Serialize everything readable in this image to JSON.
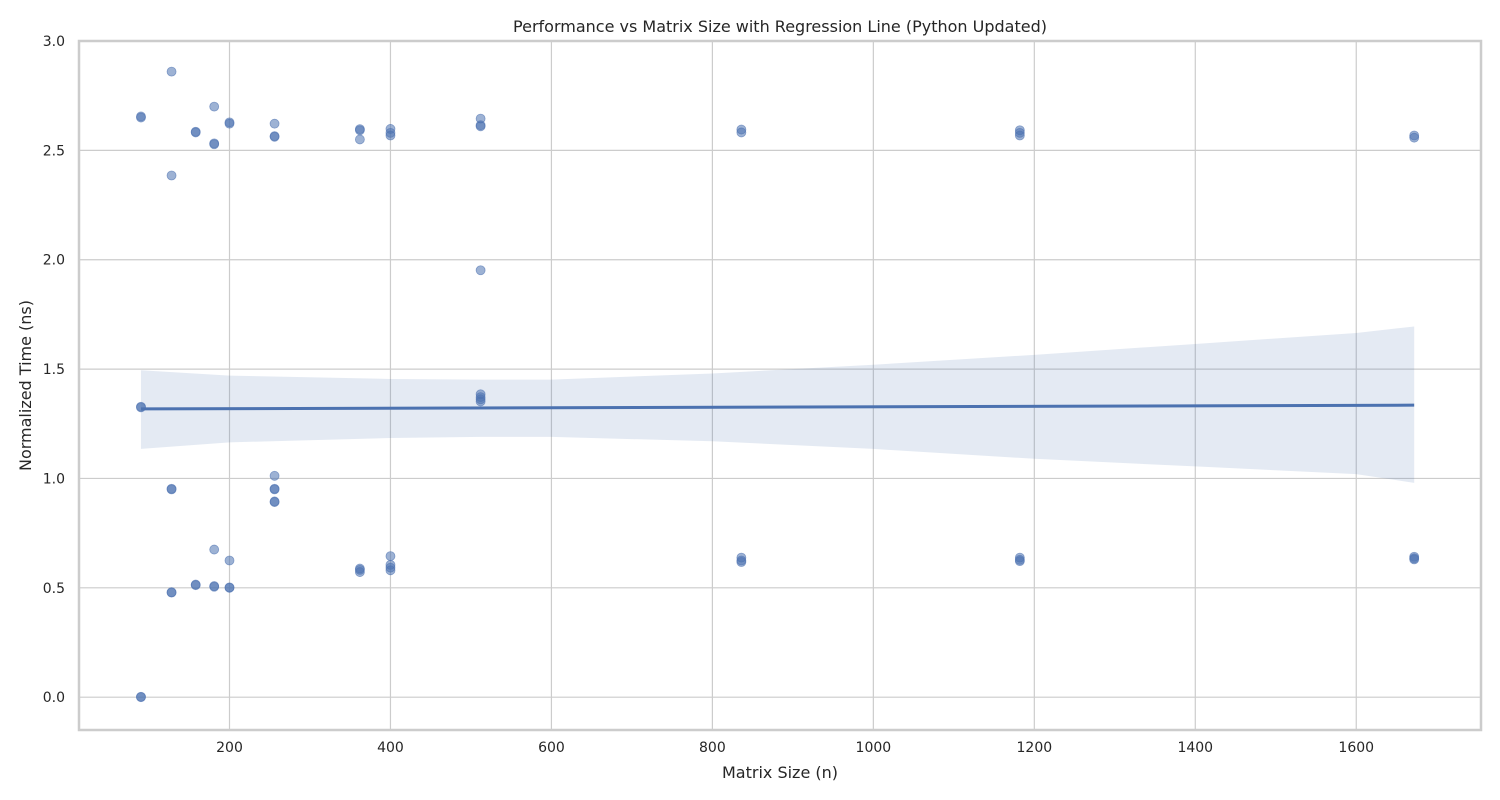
{
  "chart_data": {
    "type": "scatter",
    "title": "Performance vs Matrix Size with Regression Line (Python Updated)",
    "xlabel": "Matrix Size (n)",
    "ylabel": "Normalized Time (ns)",
    "xlim": [
      13,
      1755
    ],
    "ylim": [
      -0.15,
      3.0
    ],
    "x_ticks": [
      200,
      400,
      600,
      800,
      1000,
      1200,
      1400,
      1600
    ],
    "x_tick_labels": [
      "200",
      "400",
      "600",
      "800",
      "1000",
      "1200",
      "1400",
      "1600"
    ],
    "y_ticks": [
      0.0,
      0.5,
      1.0,
      1.5,
      2.0,
      2.5,
      3.0
    ],
    "y_tick_labels": [
      "0.0",
      "0.5",
      "1.0",
      "1.5",
      "2.0",
      "2.5",
      "3.0"
    ],
    "grid": true,
    "colors": {
      "points": "#4c72b0",
      "line": "#4c72b0",
      "band": "#4c72b0"
    },
    "series": [
      {
        "values_xy": [
          [
            90,
            2.655
          ],
          [
            90,
            2.65
          ],
          [
            90,
            1.328
          ],
          [
            90,
            1.325
          ],
          [
            90,
            0.0
          ],
          [
            90,
            0.002
          ],
          [
            128,
            2.86
          ],
          [
            128,
            2.385
          ],
          [
            128,
            0.953
          ],
          [
            128,
            0.95
          ],
          [
            128,
            0.48
          ],
          [
            128,
            0.478
          ],
          [
            158,
            2.585
          ],
          [
            158,
            2.582
          ],
          [
            158,
            0.515
          ],
          [
            158,
            0.512
          ],
          [
            181,
            2.7
          ],
          [
            181,
            2.532
          ],
          [
            181,
            2.528
          ],
          [
            181,
            0.675
          ],
          [
            181,
            0.508
          ],
          [
            181,
            0.505
          ],
          [
            200,
            2.628
          ],
          [
            200,
            2.622
          ],
          [
            200,
            0.625
          ],
          [
            200,
            0.502
          ],
          [
            200,
            0.5
          ],
          [
            256,
            2.622
          ],
          [
            256,
            2.565
          ],
          [
            256,
            2.562
          ],
          [
            256,
            1.012
          ],
          [
            256,
            0.953
          ],
          [
            256,
            0.95
          ],
          [
            256,
            0.895
          ],
          [
            256,
            0.892
          ],
          [
            362,
            2.597
          ],
          [
            362,
            2.592
          ],
          [
            362,
            2.55
          ],
          [
            362,
            0.588
          ],
          [
            362,
            0.582
          ],
          [
            362,
            0.572
          ],
          [
            400,
            2.598
          ],
          [
            400,
            2.58
          ],
          [
            400,
            2.568
          ],
          [
            400,
            0.645
          ],
          [
            400,
            0.605
          ],
          [
            400,
            0.592
          ],
          [
            400,
            0.58
          ],
          [
            512,
            2.645
          ],
          [
            512,
            2.615
          ],
          [
            512,
            2.61
          ],
          [
            512,
            1.952
          ],
          [
            512,
            1.385
          ],
          [
            512,
            1.372
          ],
          [
            512,
            1.362
          ],
          [
            512,
            1.352
          ],
          [
            836,
            2.595
          ],
          [
            836,
            2.582
          ],
          [
            836,
            0.638
          ],
          [
            836,
            0.625
          ],
          [
            836,
            0.618
          ],
          [
            1182,
            2.592
          ],
          [
            1182,
            2.58
          ],
          [
            1182,
            2.568
          ],
          [
            1182,
            0.638
          ],
          [
            1182,
            0.628
          ],
          [
            1182,
            0.622
          ],
          [
            1672,
            2.568
          ],
          [
            1672,
            2.558
          ],
          [
            1672,
            0.642
          ],
          [
            1672,
            0.635
          ],
          [
            1672,
            0.63
          ]
        ]
      }
    ],
    "regression": {
      "x": [
        90,
        1672
      ],
      "y": [
        1.318,
        1.335
      ]
    },
    "confidence_band": {
      "x": [
        90,
        200,
        400,
        512,
        600,
        800,
        1000,
        1200,
        1400,
        1600,
        1672
      ],
      "lower": [
        1.135,
        1.165,
        1.185,
        1.19,
        1.19,
        1.17,
        1.135,
        1.09,
        1.055,
        1.02,
        0.98
      ],
      "upper": [
        1.495,
        1.47,
        1.455,
        1.452,
        1.452,
        1.48,
        1.52,
        1.565,
        1.615,
        1.665,
        1.695
      ]
    }
  }
}
